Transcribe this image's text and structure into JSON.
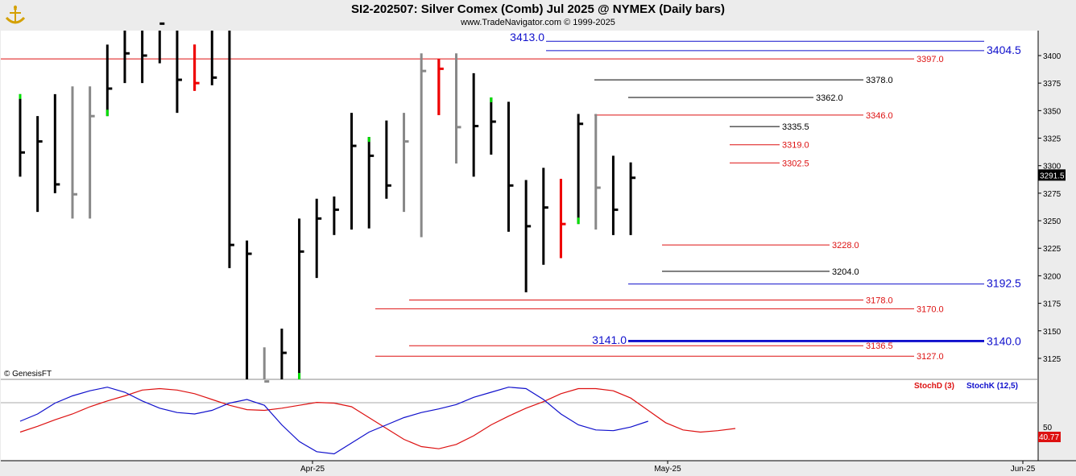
{
  "header": {
    "title": "SI2-202507:  Silver Comex (Comb) Jul 2025 @ NYMEX  (Daily bars)",
    "subtitle": "www.TradeNavigator.com © 1999-2025"
  },
  "watermark": "© GenesisFT",
  "colors": {
    "up": "#00e000",
    "down": "#ee0000",
    "neutral": "#000000",
    "inside": "#888888",
    "blue": "#1010cc",
    "red": "#dd1111",
    "stochD": "#dd1111",
    "stochK": "#1010cc"
  },
  "chart_data": [
    {
      "type": "ohlc",
      "title": "",
      "y_ticks": [
        3125,
        3150,
        3175,
        3200,
        3225,
        3250,
        3275,
        3300,
        3325,
        3350,
        3375,
        3400
      ],
      "ylim": [
        3104,
        3429
      ],
      "last_price": "3291.5",
      "bars": [
        {
          "hi": 3365,
          "lo": 3290,
          "c": 3312,
          "col": "k",
          "hc": "g"
        },
        {
          "hi": 3345,
          "lo": 3258,
          "c": 3322,
          "col": "k"
        },
        {
          "hi": 3365,
          "lo": 3275,
          "c": 3283,
          "col": "k"
        },
        {
          "hi": 3372,
          "lo": 3252,
          "c": 3274,
          "col": "g"
        },
        {
          "hi": 3372,
          "lo": 3252,
          "c": 3345,
          "col": "g"
        },
        {
          "hi": 3410,
          "lo": 3345,
          "c": 3370,
          "col": "k",
          "lc": "g"
        },
        {
          "hi": 3429,
          "lo": 3375,
          "c": 3402,
          "col": "k"
        },
        {
          "hi": 3429,
          "lo": 3375,
          "c": 3400,
          "col": "k"
        },
        {
          "hi": 3429,
          "lo": 3393,
          "c": 3429,
          "col": "k"
        },
        {
          "hi": 3429,
          "lo": 3348,
          "c": 3378,
          "col": "k"
        },
        {
          "hi": 3410,
          "lo": 3368,
          "c": 3375,
          "col": "r"
        },
        {
          "hi": 3429,
          "lo": 3373,
          "c": 3380,
          "col": "k"
        },
        {
          "hi": 3429,
          "lo": 3207,
          "c": 3228,
          "col": "k"
        },
        {
          "hi": 3232,
          "lo": 3104,
          "c": 3220,
          "col": "k"
        },
        {
          "hi": 3135,
          "lo": 3104,
          "c": 3104,
          "col": "g"
        },
        {
          "hi": 3152,
          "lo": 3104,
          "c": 3130,
          "col": "k"
        },
        {
          "hi": 3252,
          "lo": 3104,
          "c": 3222,
          "col": "k",
          "lc": "g"
        },
        {
          "hi": 3270,
          "lo": 3198,
          "c": 3252,
          "col": "k"
        },
        {
          "hi": 3272,
          "lo": 3237,
          "c": 3260,
          "col": "k"
        },
        {
          "hi": 3348,
          "lo": 3242,
          "c": 3318,
          "col": "k"
        },
        {
          "hi": 3326,
          "lo": 3243,
          "c": 3309,
          "col": "k",
          "hc": "g"
        },
        {
          "hi": 3341,
          "lo": 3270,
          "c": 3282,
          "col": "k"
        },
        {
          "hi": 3348,
          "lo": 3258,
          "c": 3322,
          "col": "g"
        },
        {
          "hi": 3402,
          "lo": 3235,
          "c": 3386,
          "col": "g"
        },
        {
          "hi": 3397,
          "lo": 3346,
          "c": 3388,
          "col": "r"
        },
        {
          "hi": 3402,
          "lo": 3302,
          "c": 3335,
          "col": "g"
        },
        {
          "hi": 3384,
          "lo": 3290,
          "c": 3336,
          "col": "k"
        },
        {
          "hi": 3362,
          "lo": 3310,
          "c": 3340,
          "col": "k",
          "hc": "g"
        },
        {
          "hi": 3358,
          "lo": 3240,
          "c": 3282,
          "col": "k"
        },
        {
          "hi": 3287,
          "lo": 3185,
          "c": 3245,
          "col": "k"
        },
        {
          "hi": 3298,
          "lo": 3210,
          "c": 3262,
          "col": "k"
        },
        {
          "hi": 3288,
          "lo": 3216,
          "c": 3247,
          "col": "r"
        },
        {
          "hi": 3347,
          "lo": 3247,
          "c": 3338,
          "col": "k",
          "lc": "g"
        },
        {
          "hi": 3347,
          "lo": 3242,
          "c": 3280,
          "col": "g"
        },
        {
          "hi": 3309,
          "lo": 3237,
          "c": 3260,
          "col": "k"
        },
        {
          "hi": 3303,
          "lo": 3237,
          "c": 3289,
          "col": "k"
        }
      ],
      "levels": [
        {
          "value": "3413.0",
          "color": "blue",
          "side": "left",
          "big": true
        },
        {
          "value": "3404.5",
          "color": "blue",
          "side": "right",
          "big": true
        },
        {
          "value": "3397.0",
          "color": "red",
          "side": "right"
        },
        {
          "value": "3378.0",
          "color": "black",
          "side": "mid"
        },
        {
          "value": "3362.0",
          "color": "black",
          "side": "mid"
        },
        {
          "value": "3346.0",
          "color": "red",
          "side": "mid"
        },
        {
          "value": "3335.5",
          "color": "black",
          "side": "mid"
        },
        {
          "value": "3319.0",
          "color": "red",
          "side": "mid"
        },
        {
          "value": "3302.5",
          "color": "red",
          "side": "mid"
        },
        {
          "value": "3228.0",
          "color": "red",
          "side": "mid"
        },
        {
          "value": "3204.0",
          "color": "black",
          "side": "mid"
        },
        {
          "value": "3192.5",
          "color": "blue",
          "side": "right",
          "big": true
        },
        {
          "value": "3178.0",
          "color": "red",
          "side": "mid"
        },
        {
          "value": "3170.0",
          "color": "red",
          "side": "right"
        },
        {
          "value": "3141.0",
          "color": "blue",
          "side": "left",
          "big": true
        },
        {
          "value": "3140.0",
          "color": "blue",
          "side": "right",
          "big": true
        },
        {
          "value": "3136.5",
          "color": "red",
          "side": "mid"
        },
        {
          "value": "3127.0",
          "color": "red",
          "side": "right"
        }
      ],
      "x_ticks": [
        "Apr-25",
        "May-25",
        "Jun-25"
      ]
    },
    {
      "type": "line",
      "title": "",
      "series": [
        {
          "name": "StochD (3)",
          "color": "#dd1111",
          "values": [
            35,
            43,
            52,
            60,
            70,
            78,
            85,
            93,
            95,
            93,
            88,
            80,
            72,
            66,
            65,
            68,
            72,
            76,
            75,
            70,
            55,
            40,
            25,
            15,
            12,
            18,
            30,
            45,
            57,
            68,
            77,
            88,
            95,
            95,
            92,
            82,
            65,
            48,
            38,
            35,
            37,
            40
          ]
        },
        {
          "name": "StochK (12,5)",
          "color": "#1010cc",
          "values": [
            50,
            60,
            75,
            85,
            92,
            97,
            90,
            78,
            68,
            62,
            60,
            65,
            75,
            80,
            72,
            45,
            22,
            8,
            5,
            20,
            35,
            45,
            55,
            62,
            67,
            73,
            83,
            90,
            97,
            95,
            80,
            60,
            45,
            38,
            37,
            42,
            50
          ]
        }
      ],
      "ylim": [
        0,
        100
      ],
      "right_labels": [
        "50",
        "40.77"
      ]
    }
  ]
}
